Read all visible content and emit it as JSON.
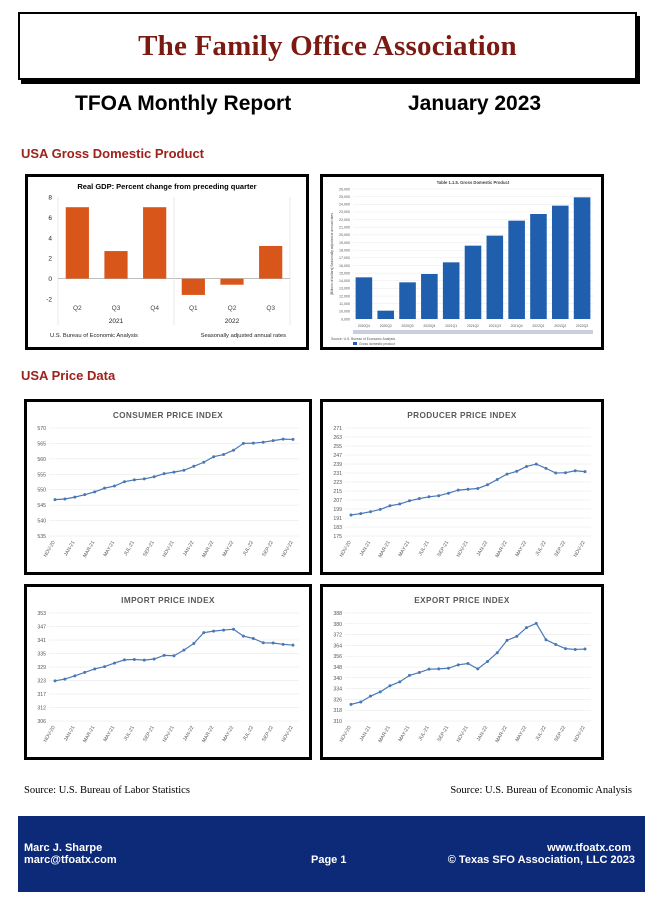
{
  "header": {
    "association": "The Family Office Association",
    "report_title": "TFOA Monthly Report",
    "report_date": "January 2023"
  },
  "sections": {
    "gdp_title": "USA Gross Domestic Product",
    "price_title": "USA Price Data"
  },
  "sources": {
    "left": "Source: U.S. Bureau of Labor Statistics",
    "right": "Source: U.S. Bureau of Economic Analysis"
  },
  "footer": {
    "name": "Marc J. Sharpe",
    "email": "marc@tfoatx.com",
    "page": "Page 1",
    "website": "www.tfoatx.com",
    "copyright": "© Texas SFO Association, LLC 2023"
  },
  "colors": {
    "brand_red": "#7a1a12",
    "section_red": "#a0201a",
    "footer_blue": "#0d2a78",
    "bar_orange": "#d9561a",
    "bar_blue": "#1f5fae",
    "line_blue": "#4a78b5"
  },
  "chart_data": [
    {
      "id": "real-gdp",
      "type": "bar",
      "title": "Real GDP:  Percent change from preceding quarter",
      "categories": [
        "Q2",
        "Q3",
        "Q4",
        "Q1",
        "Q2",
        "Q3"
      ],
      "year_groups": [
        "2021",
        "2022"
      ],
      "values": [
        7.0,
        2.7,
        7.0,
        -1.6,
        -0.6,
        3.2
      ],
      "ylim": [
        -2,
        8
      ],
      "yticks": [
        "-2",
        "0",
        "2",
        "4",
        "6",
        "8"
      ],
      "note_left": "U.S. Bureau of Economic Analysis",
      "note_right": "Seasonally adjusted annual rates"
    },
    {
      "id": "gdp-table",
      "type": "bar",
      "title": "Table 1.1.5. Gross Domestic Product",
      "ylabel": "[Billions of dollars] Seasonally adjusted at annual rates",
      "yticks": [
        "26,000",
        "25,000",
        "24,000",
        "23,000",
        "22,000",
        "21,000",
        "20,000",
        "19,000",
        "18,000",
        "17,000",
        "16,000",
        "15,000",
        "14,000",
        "13,000",
        "12,000",
        "11,000",
        "10,000",
        "9,000"
      ],
      "categories": [
        "2020Q4",
        "2020Q2",
        "2020Q3",
        "2020Q4",
        "2021Q1",
        "2021Q2",
        "2021Q3",
        "2021Q4",
        "2022Q1",
        "2022Q2",
        "2022Q3"
      ],
      "values": [
        21500,
        19500,
        21200,
        21700,
        22400,
        23400,
        24000,
        24900,
        25300,
        25800,
        26300
      ],
      "ylim": [
        19000,
        26800
      ],
      "legend": "Gross domestic product",
      "note": "Source: U.S. Bureau of Economic Analysis"
    },
    {
      "id": "cpi",
      "type": "line",
      "title": "CONSUMER PRICE INDEX",
      "x": [
        "NOV-20",
        "DEC-20",
        "JAN-21",
        "FEB-21",
        "MAR-21",
        "APR-21",
        "MAY-21",
        "JUN-21",
        "JUL-21",
        "AUG-21",
        "SEP-21",
        "OCT-21",
        "NOV-21",
        "DEC-21",
        "JAN-22",
        "FEB-22",
        "MAR-22",
        "APR-22",
        "MAY-22",
        "JUN-22",
        "JUL-22",
        "AUG-22",
        "SEP-22",
        "OCT-22",
        "NOV-22"
      ],
      "xticks": [
        "NOV-20",
        "JAN-21",
        "MAR-21",
        "MAY-21",
        "JUL-21",
        "SEP-21",
        "NOV-21",
        "JAN-22",
        "MAR-22",
        "MAY-22",
        "JUL-22",
        "SEP-22",
        "NOV-22"
      ],
      "values": [
        546.8,
        547.0,
        547.6,
        548.4,
        549.3,
        550.5,
        551.2,
        552.6,
        553.2,
        553.5,
        554.2,
        555.2,
        555.7,
        556.3,
        557.6,
        558.9,
        560.7,
        561.4,
        562.8,
        565.0,
        565.1,
        565.4,
        565.9,
        566.4,
        566.3
      ],
      "ylim": [
        535,
        570
      ],
      "yticks": [
        "535",
        "540",
        "545",
        "550",
        "555",
        "560",
        "565",
        "570"
      ]
    },
    {
      "id": "ppi",
      "type": "line",
      "title": "PRODUCER PRICE INDEX",
      "x": [
        "NOV-20",
        "DEC-20",
        "JAN-21",
        "FEB-21",
        "MAR-21",
        "APR-21",
        "MAY-21",
        "JUN-21",
        "JUL-21",
        "AUG-21",
        "SEP-21",
        "OCT-21",
        "NOV-21",
        "DEC-21",
        "JAN-22",
        "FEB-22",
        "MAR-22",
        "APR-22",
        "MAY-22",
        "JUN-22",
        "JUL-22",
        "AUG-22",
        "SEP-22",
        "OCT-22",
        "NOV-22"
      ],
      "xticks": [
        "NOV-20",
        "JAN-21",
        "MAR-21",
        "MAY-21",
        "JUL-21",
        "SEP-21",
        "NOV-21",
        "JAN-22",
        "MAR-22",
        "MAY-22",
        "JUL-22",
        "SEP-22",
        "NOV-22"
      ],
      "values": [
        194.5,
        195.7,
        197.5,
        199.6,
        203.0,
        204.6,
        207.6,
        209.6,
        211.3,
        212.3,
        214.6,
        217.5,
        218.3,
        219.0,
        222.4,
        227.3,
        232.3,
        234.9,
        239.4,
        241.6,
        237.6,
        233.3,
        233.6,
        235.4,
        234.6
      ],
      "ylim": [
        175,
        275
      ],
      "yticks": [
        "175",
        "183",
        "191",
        "199",
        "207",
        "215",
        "223",
        "231",
        "239",
        "247",
        "255",
        "263",
        "271"
      ]
    },
    {
      "id": "ipi",
      "type": "line",
      "title": "IMPORT PRICE INDEX",
      "x": [
        "NOV-20",
        "DEC-20",
        "JAN-21",
        "FEB-21",
        "MAR-21",
        "APR-21",
        "MAY-21",
        "JUN-21",
        "JUL-21",
        "AUG-21",
        "SEP-21",
        "OCT-21",
        "NOV-21",
        "DEC-21",
        "JAN-22",
        "FEB-22",
        "MAR-22",
        "APR-22",
        "MAY-22",
        "JUN-22",
        "JUL-22",
        "AUG-22",
        "SEP-22",
        "OCT-22",
        "NOV-22"
      ],
      "xticks": [
        "NOV-20",
        "JAN-21",
        "MAR-21",
        "MAY-21",
        "JUL-21",
        "SEP-21",
        "NOV-21",
        "JAN-22",
        "MAR-22",
        "MAY-22",
        "JUL-22",
        "SEP-22",
        "NOV-22"
      ],
      "values": [
        324.6,
        325.4,
        326.9,
        328.5,
        330.1,
        331.2,
        332.8,
        334.3,
        334.5,
        334.2,
        334.7,
        336.4,
        336.2,
        338.8,
        341.9,
        346.9,
        347.6,
        348.1,
        348.5,
        345.3,
        344.2,
        342.2,
        342.1,
        341.5,
        341.1
      ],
      "ylim": [
        306,
        356
      ],
      "yticks": [
        "306",
        "312",
        "317",
        "323",
        "329",
        "335",
        "341",
        "347",
        "353"
      ]
    },
    {
      "id": "epi",
      "type": "line",
      "title": "EXPORT PRICE INDEX",
      "x": [
        "NOV-20",
        "DEC-20",
        "JAN-21",
        "FEB-21",
        "MAR-21",
        "APR-21",
        "MAY-21",
        "JUN-21",
        "JUL-21",
        "AUG-21",
        "SEP-21",
        "OCT-21",
        "NOV-21",
        "DEC-21",
        "JAN-22",
        "FEB-22",
        "MAR-22",
        "APR-22",
        "MAY-22",
        "JUN-22",
        "JUL-22",
        "AUG-22",
        "SEP-22",
        "OCT-22",
        "NOV-22"
      ],
      "xticks": [
        "NOV-20",
        "JAN-21",
        "MAR-21",
        "MAY-21",
        "JUL-21",
        "SEP-21",
        "NOV-21",
        "JAN-22",
        "MAR-22",
        "MAY-22",
        "JUL-22",
        "SEP-22",
        "NOV-22"
      ],
      "values": [
        322.3,
        324.1,
        328.4,
        331.6,
        336.1,
        339.0,
        343.8,
        345.9,
        348.4,
        348.6,
        349.1,
        351.6,
        352.6,
        348.6,
        354.1,
        360.6,
        369.7,
        372.7,
        379.2,
        382.3,
        370.2,
        366.7,
        363.6,
        363.0,
        363.3
      ],
      "ylim": [
        310,
        390
      ],
      "yticks": [
        "310",
        "318",
        "326",
        "334",
        "340",
        "348",
        "356",
        "364",
        "372",
        "380",
        "388"
      ]
    }
  ]
}
